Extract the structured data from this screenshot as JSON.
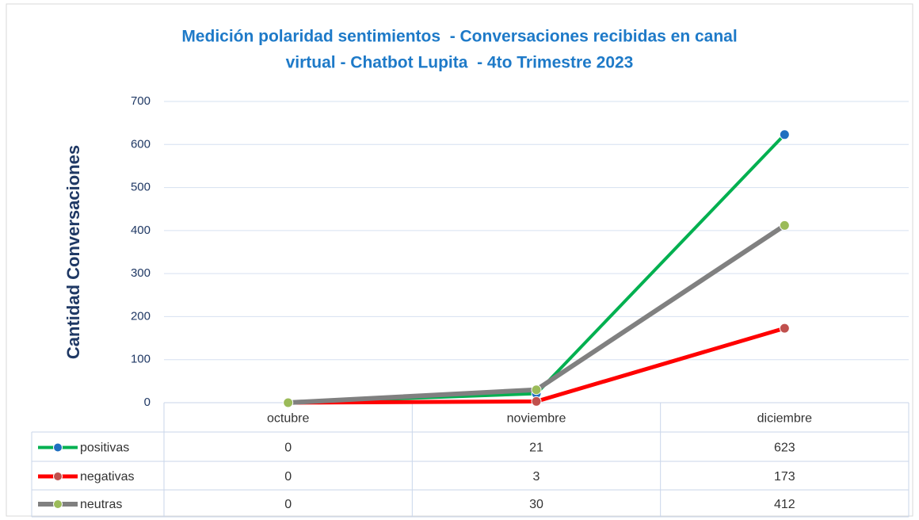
{
  "chart_data": {
    "type": "line",
    "title": [
      "Medición polaridad sentimientos  - Conversaciones recibidas en canal",
      "virtual - Chatbot Lupita  - 4to Trimestre 2023"
    ],
    "y_label": "Cantidad Conversaciones",
    "categories": [
      "octubre",
      "noviembre",
      "diciembre"
    ],
    "series": [
      {
        "name": "positivas",
        "color": "#00b050",
        "marker_color": "#1f6fc0",
        "values": [
          0,
          21,
          623
        ]
      },
      {
        "name": "negativas",
        "color": "#ff0000",
        "marker_color": "#c0504d",
        "values": [
          0,
          3,
          173
        ]
      },
      {
        "name": "neutras",
        "color": "#808080",
        "marker_color": "#9bbb59",
        "values": [
          0,
          30,
          412
        ]
      }
    ],
    "ylim": [
      0,
      700
    ],
    "yticks": [
      0,
      100,
      200,
      300,
      400,
      500,
      600,
      700
    ],
    "grid": true
  }
}
